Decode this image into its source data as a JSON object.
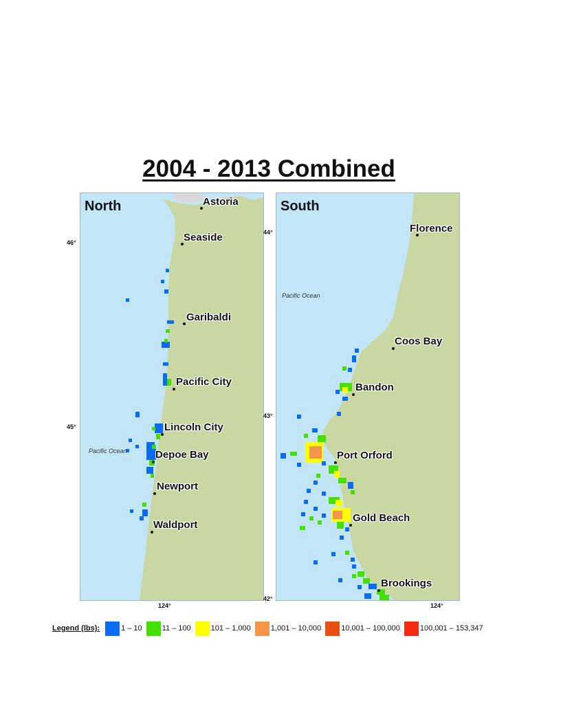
{
  "title": "2004 - 2013 Combined",
  "panels": {
    "north": {
      "label": "North",
      "ocean_label": "Pacific Ocean",
      "cities": [
        {
          "name": "Astoria"
        },
        {
          "name": "Seaside"
        },
        {
          "name": "Garibaldi"
        },
        {
          "name": "Pacific City"
        },
        {
          "name": "Lincoln City"
        },
        {
          "name": "Depoe Bay"
        },
        {
          "name": "Newport"
        },
        {
          "name": "Waldport"
        }
      ],
      "lat_ticks": [
        "46°",
        "45°"
      ],
      "lon_tick": "124°"
    },
    "south": {
      "label": "South",
      "ocean_label": "Pacific Ocean",
      "cities": [
        {
          "name": "Florence"
        },
        {
          "name": "Coos Bay"
        },
        {
          "name": "Bandon"
        },
        {
          "name": "Port Orford"
        },
        {
          "name": "Gold Beach"
        },
        {
          "name": "Brookings"
        }
      ],
      "lat_ticks": [
        "44°",
        "43°",
        "42°"
      ],
      "lon_tick": "124°"
    }
  },
  "legend": {
    "title": "Legend (lbs):",
    "items": [
      {
        "label": "1 – 10",
        "color": "#0a6cf5"
      },
      {
        "label": "11 – 100",
        "color": "#44e000"
      },
      {
        "label": "101 – 1,000",
        "color": "#ffff00"
      },
      {
        "label": "1,001 – 10,000",
        "color": "#f5954a"
      },
      {
        "label": "10,001 – 100,000",
        "color": "#e85012"
      },
      {
        "label": "100,001 – 153,347",
        "color": "#f52a14"
      }
    ]
  },
  "colors": {
    "ocean": "#c2e6f8",
    "land": "#c9d7a2",
    "river": "#d9d9dc"
  }
}
